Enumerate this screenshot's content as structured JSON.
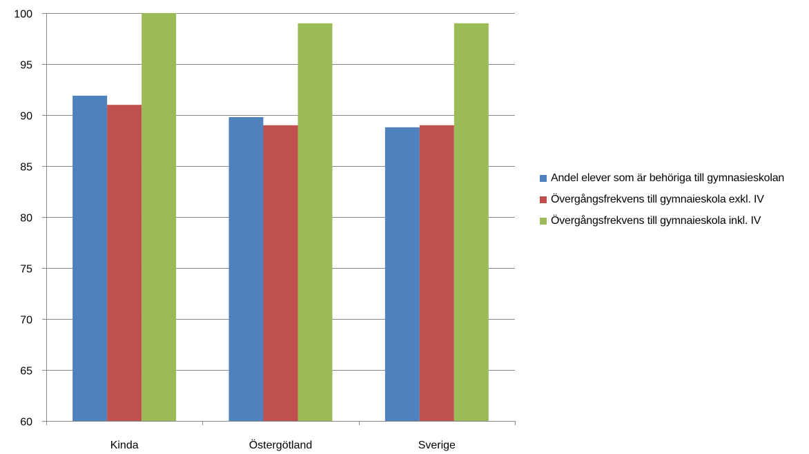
{
  "chart_data": {
    "type": "bar",
    "categories": [
      "Kinda",
      "Östergötland",
      "Sverige"
    ],
    "series": [
      {
        "name": "Andel elever som är behöriga till gymnasieskolan",
        "values": [
          91.9,
          89.8,
          88.8
        ],
        "color": "#4F81BD"
      },
      {
        "name": "Övergångsfrekvens till gymnaieskola exkl. IV",
        "values": [
          91.0,
          89.0,
          89.0
        ],
        "color": "#C0504D"
      },
      {
        "name": "Övergångsfrekvens till gymnaieskola  inkl. IV",
        "values": [
          100,
          99,
          99
        ],
        "color": "#9BBB59"
      }
    ],
    "ylim": [
      60,
      100
    ],
    "yticks": [
      60,
      65,
      70,
      75,
      80,
      85,
      90,
      95,
      100
    ],
    "grid": true,
    "legend_position": "right",
    "title": "",
    "xlabel": "",
    "ylabel": ""
  }
}
